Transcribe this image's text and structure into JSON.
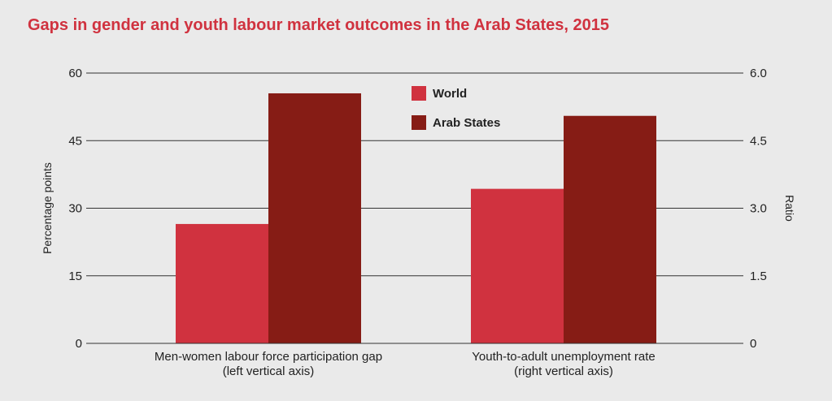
{
  "title": "Gaps in gender and youth labour market outcomes in the Arab States, 2015",
  "chart_data": {
    "type": "bar",
    "title": "Gaps in gender and youth labour market outcomes in the Arab States, 2015",
    "categories": [
      [
        "Men-women labour force participation gap",
        "(left vertical axis)"
      ],
      [
        "Youth-to-adult unemployment rate",
        "(right vertical axis)"
      ]
    ],
    "category_axis": [
      "left",
      "right"
    ],
    "series": [
      {
        "name": "World",
        "color": "#d0323f",
        "values": [
          26.5,
          3.43
        ]
      },
      {
        "name": "Arab States",
        "color": "#861c15",
        "values": [
          55.5,
          5.05
        ]
      }
    ],
    "y_left": {
      "label": "Percentage points",
      "lim": [
        0,
        60
      ],
      "ticks": [
        0,
        15,
        30,
        45,
        60
      ],
      "tick_labels": [
        "0",
        "15",
        "30",
        "45",
        "60"
      ]
    },
    "y_right": {
      "label": "Ratio",
      "lim": [
        0,
        6.0
      ],
      "ticks": [
        0,
        1.5,
        3.0,
        4.5,
        6.0
      ],
      "tick_labels": [
        "0",
        "1.5",
        "3.0",
        "4.5",
        "6.0"
      ]
    },
    "grid": true,
    "legend_position": "top-center"
  }
}
